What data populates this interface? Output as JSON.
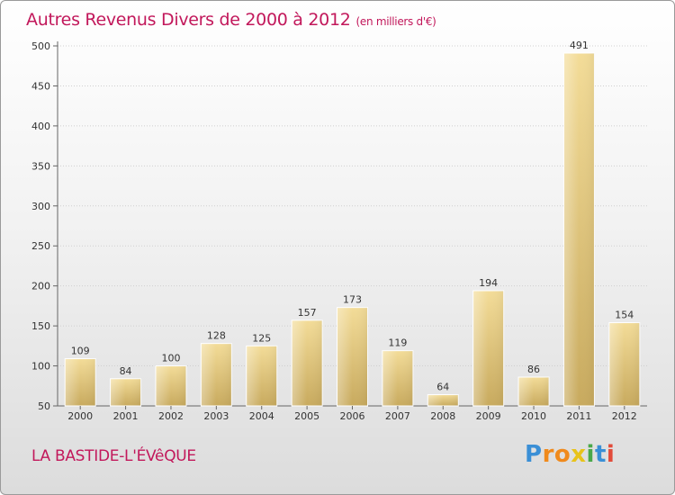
{
  "chart_data": {
    "type": "bar",
    "title": "Autres Revenus Divers de 2000 à 2012",
    "subtitle": "(en milliers d'€)",
    "categories": [
      "2000",
      "2001",
      "2002",
      "2003",
      "2004",
      "2005",
      "2006",
      "2007",
      "2008",
      "2009",
      "2010",
      "2011",
      "2012"
    ],
    "values": [
      109,
      84,
      100,
      128,
      125,
      157,
      173,
      119,
      64,
      194,
      86,
      491,
      154
    ],
    "ylim": [
      50,
      500
    ],
    "yticks": [
      50,
      100,
      150,
      200,
      250,
      300,
      350,
      400,
      450,
      500
    ],
    "grid": true,
    "bar_color": "#e0c77c"
  },
  "location": "LA BASTIDE-L'ÉVêQUE",
  "logo": {
    "letters": [
      "P",
      "r",
      "o",
      "x",
      "i",
      "t",
      "i"
    ],
    "colors": [
      "#3a8fd6",
      "#f08a1c",
      "#f08a1c",
      "#e8c31a",
      "#4aa84a",
      "#3a8fd6",
      "#e24b3a"
    ]
  }
}
